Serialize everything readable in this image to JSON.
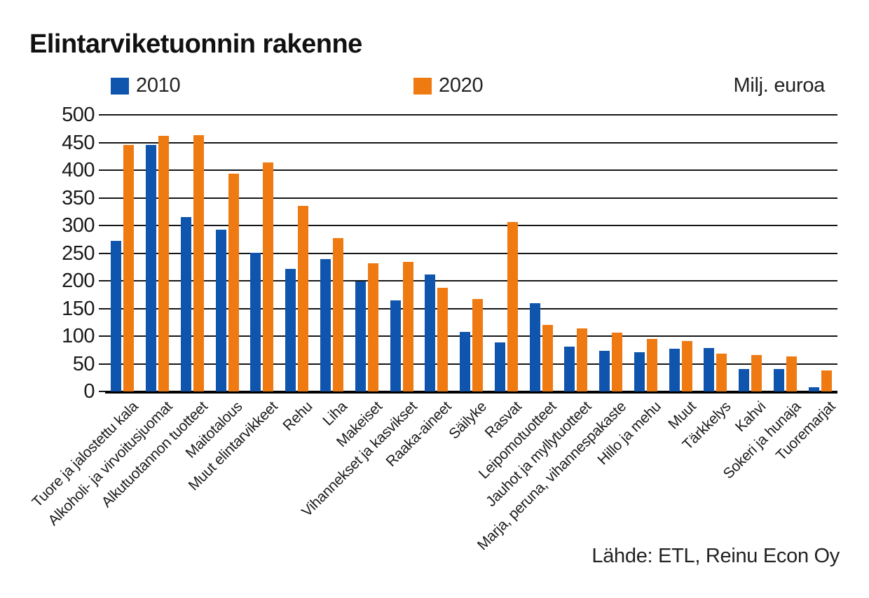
{
  "title": "Elintarviketuonnin rakenne",
  "unit_label": "Milj. euroa",
  "source": "Lähde: ETL, Reinu Econ Oy",
  "legend": [
    {
      "label": "2010",
      "color": "#0f55ad"
    },
    {
      "label": "2020",
      "color": "#ef7a12"
    }
  ],
  "y_axis": {
    "min": 0,
    "max": 500,
    "step": 50,
    "ticks": [
      0,
      50,
      100,
      150,
      200,
      250,
      300,
      350,
      400,
      450,
      500
    ]
  },
  "colors": {
    "series_2010": "#0f55ad",
    "series_2020": "#ef7a12",
    "gridline": "#161616",
    "baseline": "#000000",
    "text": "#1a1a1a"
  },
  "chart_data": {
    "type": "bar",
    "title": "Elintarviketuonnin rakenne",
    "ylabel": "Milj. euroa",
    "ylim": [
      0,
      500
    ],
    "ytick_step": 50,
    "grid": true,
    "legend_position": "top",
    "source": "Lähde: ETL, Reinu Econ Oy",
    "categories": [
      "Tuore ja jalostettu kala",
      "Alkoholi- ja virvoitusjuomat",
      "Alkutuotannon tuotteet",
      "Maitotalous",
      "Muut elintarvikkeet",
      "Rehu",
      "Liha",
      "Makeiset",
      "Vihannekset ja kasvikset",
      "Raaka-aineet",
      "Säilyke",
      "Rasvat",
      "Leipomotuotteet",
      "Jauhot ja myllytuotteet",
      "Marja, peruna, vihannespakaste",
      "Hillo ja mehu",
      "Muut",
      "Tärkkelys",
      "Kahvi",
      "Sokeri ja hunaja",
      "Tuoremarjat"
    ],
    "series": [
      {
        "name": "2010",
        "color": "#0f55ad",
        "values": [
          272,
          446,
          315,
          292,
          250,
          221,
          239,
          199,
          164,
          212,
          108,
          88,
          159,
          81,
          73,
          71,
          77,
          78,
          40,
          40,
          7
        ]
      },
      {
        "name": "2020",
        "color": "#ef7a12",
        "values": [
          445,
          462,
          463,
          394,
          414,
          335,
          277,
          232,
          234,
          187,
          167,
          306,
          120,
          114,
          106,
          95,
          91,
          68,
          66,
          63,
          38
        ]
      }
    ]
  }
}
